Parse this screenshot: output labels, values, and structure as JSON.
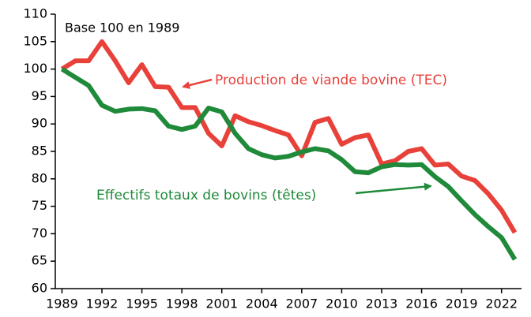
{
  "chart_data": {
    "type": "line",
    "annotation": "Base 100 en 1989",
    "x": [
      1989,
      1990,
      1991,
      1992,
      1993,
      1994,
      1995,
      1996,
      1997,
      1998,
      1999,
      2000,
      2001,
      2002,
      2003,
      2004,
      2005,
      2006,
      2007,
      2008,
      2009,
      2010,
      2011,
      2012,
      2013,
      2014,
      2015,
      2016,
      2017,
      2018,
      2019,
      2020,
      2021,
      2022,
      2023
    ],
    "series": [
      {
        "name": "Production de viande bovine (TEC)",
        "color": "#e8413a",
        "values": [
          100,
          101.5,
          101.5,
          105,
          101.5,
          97.5,
          100.8,
          96.8,
          96.7,
          93,
          93,
          88.3,
          86,
          91.5,
          90.4,
          89.7,
          88.8,
          88,
          84.2,
          90.3,
          91,
          86.3,
          87.5,
          88,
          82.7,
          83.3,
          85,
          85.5,
          82.5,
          82.7,
          80.5,
          79.7,
          77.3,
          74.3,
          70.2
        ]
      },
      {
        "name": "Effectifs totaux de bovins (têtes)",
        "color": "#1f8a3a",
        "values": [
          100,
          98.5,
          97,
          93.4,
          92.3,
          92.7,
          92.8,
          92.4,
          89.6,
          89,
          89.6,
          92.9,
          92.2,
          88.3,
          85.5,
          84.4,
          83.8,
          84.1,
          84.9,
          85.5,
          85.1,
          83.5,
          81.3,
          81.1,
          82.2,
          82.6,
          82.5,
          82.6,
          80.4,
          78.6,
          76,
          73.5,
          71.3,
          69.3,
          65.3
        ]
      }
    ],
    "xlim": [
      1988.5,
      2023.5
    ],
    "xticks": [
      1989,
      1992,
      1995,
      1998,
      2001,
      2004,
      2007,
      2010,
      2013,
      2016,
      2019,
      2022
    ],
    "ylim": [
      60,
      110
    ],
    "yticks": [
      60,
      65,
      70,
      75,
      80,
      85,
      90,
      95,
      100,
      105,
      110
    ],
    "grid": false
  }
}
